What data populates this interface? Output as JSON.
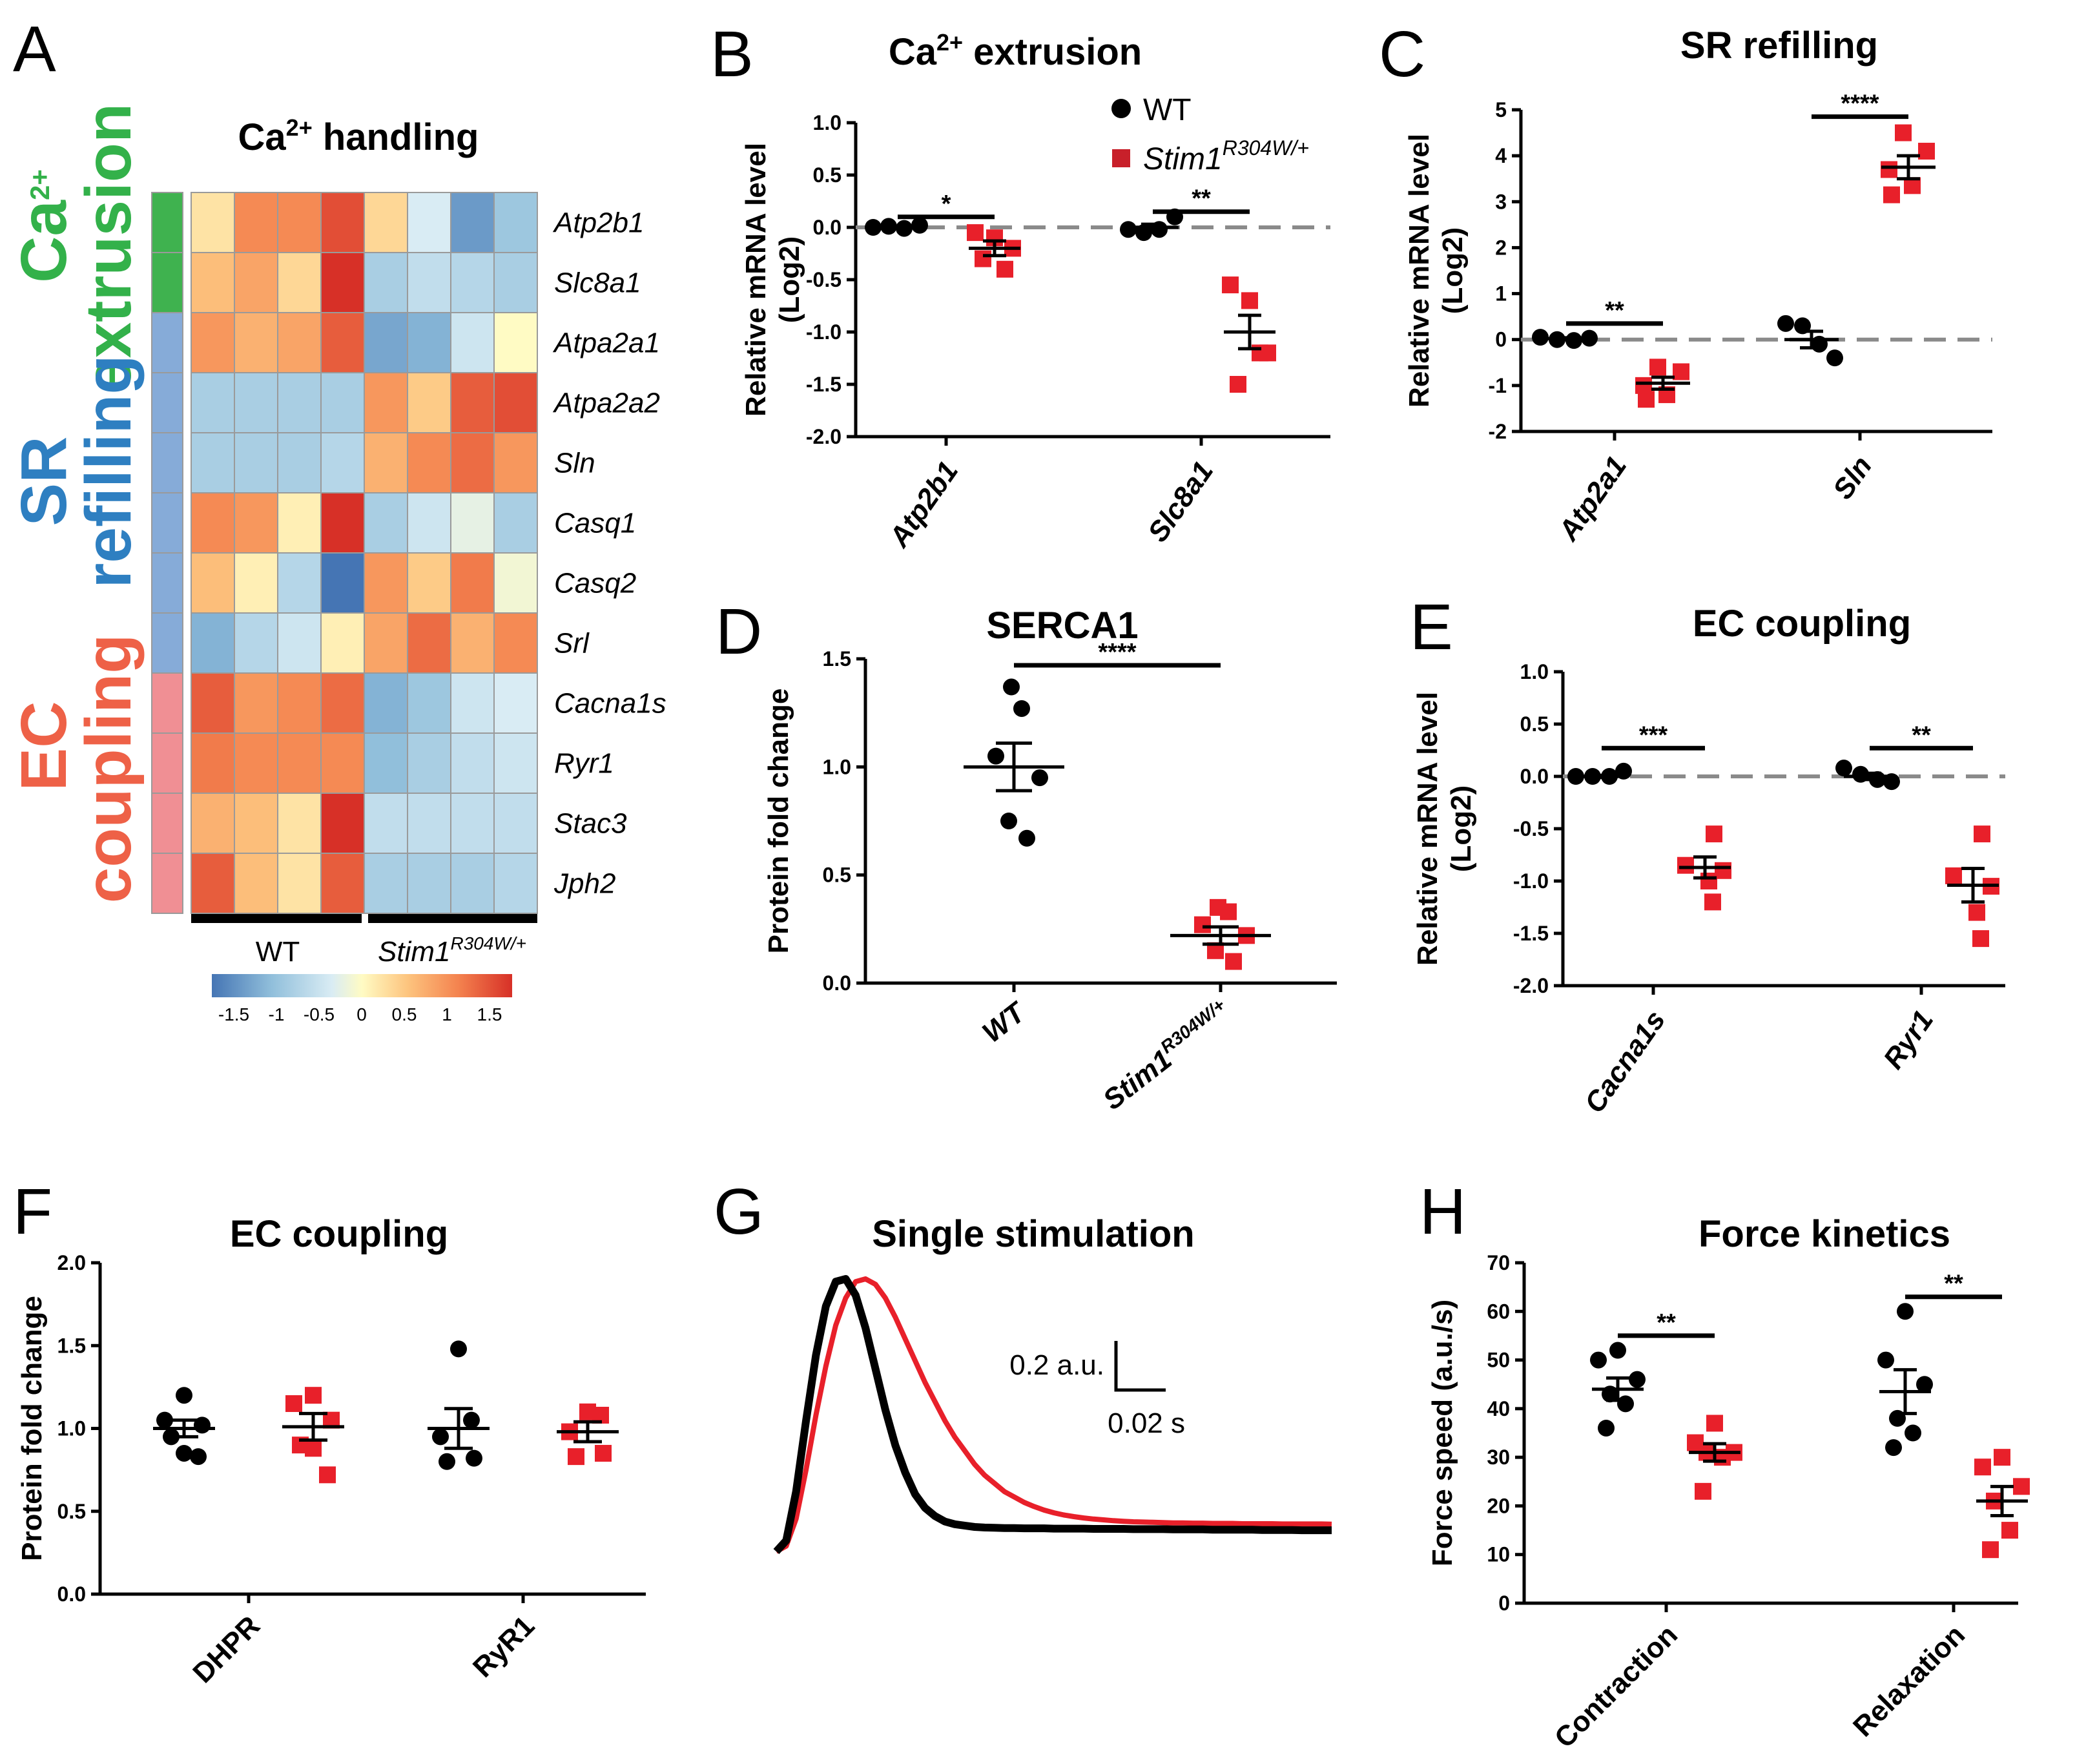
{
  "palette": {
    "wt": "#000000",
    "mut": "#e8202a",
    "dash": "#8a8a8a",
    "green": "#33b14a",
    "blue": "#2e7fc1",
    "salmon": "#ee6147"
  },
  "legend": {
    "wt_label": "WT",
    "mut_base": "Stim1",
    "mut_sup": "R304W/+"
  },
  "panels": {
    "A": {
      "letter": "A",
      "title_pre": "Ca",
      "title_sup": "2+",
      "title_post": " handling",
      "group_extrusion_top_base": "Ca",
      "group_extrusion_top_sup": "2+",
      "group_extrusion_bottom": "extrusion",
      "group_sr_top": "SR",
      "group_sr_bottom": "refilling",
      "group_ec_top": "EC",
      "group_ec_bottom": "coupling",
      "xgroup_wt": "WT",
      "xgroup_mut_base": "Stim1",
      "xgroup_mut_sup": "R304W/+",
      "colorbar_ticks": [
        "-1.5",
        "-1",
        "-0.5",
        "0",
        "0.5",
        "1",
        "1.5"
      ]
    },
    "B": {
      "letter": "B",
      "title_pre": "Ca",
      "title_sup": "2+",
      "title_post": " extrusion"
    },
    "C": {
      "letter": "C",
      "title": "SR refilling"
    },
    "D": {
      "letter": "D",
      "title": "SERCA1"
    },
    "E": {
      "letter": "E",
      "title": "EC coupling"
    },
    "F": {
      "letter": "F",
      "title": "EC coupling"
    },
    "G": {
      "letter": "G",
      "title": "Single stimulation",
      "scale_y": "0.2 a.u.",
      "scale_x": "0.02 s"
    },
    "H": {
      "letter": "H",
      "title": "Force kinetics"
    }
  },
  "chart_data": [
    {
      "panel": "A",
      "type": "heatmap",
      "title": "Ca2+ handling",
      "rows": [
        "Atp2b1",
        "Slc8a1",
        "Atpa2a1",
        "Atpa2a2",
        "Sln",
        "Casq1",
        "Casq2",
        "Srl",
        "Cacna1s",
        "Ryr1",
        "Stac3",
        "Jph2"
      ],
      "row_groups": [
        "extrusion",
        "extrusion",
        "sr",
        "sr",
        "sr",
        "sr",
        "sr",
        "sr",
        "ec",
        "ec",
        "ec",
        "ec"
      ],
      "column_groups": [
        "WT",
        "WT",
        "WT",
        "WT",
        "Stim1 R304W/+",
        "Stim1 R304W/+",
        "Stim1 R304W/+",
        "Stim1 R304W/+"
      ],
      "values": [
        [
          0.2,
          0.9,
          0.9,
          1.3,
          0.3,
          -0.3,
          -1.2,
          -0.8
        ],
        [
          0.5,
          0.7,
          0.3,
          1.6,
          -0.7,
          -0.5,
          -0.6,
          -0.7
        ],
        [
          0.8,
          0.6,
          0.7,
          1.2,
          -1.1,
          -1.0,
          -0.4,
          0.0
        ],
        [
          -0.7,
          -0.7,
          -0.7,
          -0.7,
          0.8,
          0.4,
          1.2,
          1.3
        ],
        [
          -0.7,
          -0.7,
          -0.7,
          -0.6,
          0.6,
          0.9,
          1.1,
          0.8
        ],
        [
          0.9,
          0.8,
          0.1,
          1.6,
          -0.7,
          -0.4,
          -0.2,
          -0.7
        ],
        [
          0.5,
          0.1,
          -0.6,
          -1.6,
          0.8,
          0.4,
          1.0,
          -0.1
        ],
        [
          -1.0,
          -0.6,
          -0.4,
          0.1,
          0.7,
          1.1,
          0.6,
          0.9
        ],
        [
          1.2,
          0.8,
          0.9,
          1.1,
          -1.0,
          -0.8,
          -0.4,
          -0.3
        ],
        [
          1.0,
          0.9,
          0.9,
          0.9,
          -0.9,
          -0.7,
          -0.5,
          -0.4
        ],
        [
          0.6,
          0.5,
          0.2,
          1.6,
          -0.5,
          -0.5,
          -0.5,
          -0.5
        ],
        [
          1.2,
          0.5,
          0.2,
          1.2,
          -0.7,
          -0.7,
          -0.7,
          -0.6
        ]
      ],
      "color_range": [
        -1.5,
        1.5
      ]
    },
    {
      "panel": "B",
      "type": "scatter",
      "title": "Ca2+ extrusion",
      "ylabel": [
        "Relative mRNA level",
        "(Log2)"
      ],
      "ylim": [
        -2.0,
        1.0
      ],
      "yticks": [
        "-2.0",
        "-1.5",
        "-1.0",
        "-0.5",
        "0.0",
        "0.5",
        "1.0"
      ],
      "categories": [
        "Atp2b1",
        "Slc8a1"
      ],
      "baseline": 0,
      "groups": [
        {
          "category": "Atp2b1",
          "series": "WT",
          "values": [
            0.0,
            0.01,
            -0.01,
            0.02
          ],
          "mean": 0.0,
          "sem": 0.01
        },
        {
          "category": "Atp2b1",
          "series": "Stim1",
          "values": [
            -0.05,
            -0.1,
            -0.2,
            -0.3,
            -0.4
          ],
          "mean": -0.2,
          "sem": 0.07
        },
        {
          "category": "Slc8a1",
          "series": "WT",
          "values": [
            -0.02,
            -0.05,
            -0.02,
            0.1
          ],
          "mean": 0.0,
          "sem": 0.03
        },
        {
          "category": "Slc8a1",
          "series": "Stim1",
          "values": [
            -0.55,
            -0.7,
            -1.2,
            -1.5,
            -1.2
          ],
          "mean": -1.0,
          "sem": 0.16
        }
      ],
      "significance": [
        {
          "category": "Atp2b1",
          "label": "*",
          "y": 0.1
        },
        {
          "category": "Slc8a1",
          "label": "**",
          "y": 0.15
        }
      ]
    },
    {
      "panel": "C",
      "type": "scatter",
      "title": "SR refilling",
      "ylabel": [
        "Relative mRNA level",
        "(Log2)"
      ],
      "ylim": [
        -2,
        5
      ],
      "yticks": [
        "-2",
        "-1",
        "0",
        "1",
        "2",
        "3",
        "4",
        "5"
      ],
      "categories": [
        "Atp2a1",
        "Sln"
      ],
      "baseline": 0,
      "groups": [
        {
          "category": "Atp2a1",
          "series": "WT",
          "values": [
            0.05,
            0.0,
            -0.02,
            0.03
          ],
          "mean": 0.02,
          "sem": 0.02
        },
        {
          "category": "Atp2a1",
          "series": "Stim1",
          "values": [
            -0.6,
            -0.7,
            -1.0,
            -1.2,
            -1.3
          ],
          "mean": -0.95,
          "sem": 0.13
        },
        {
          "category": "Sln",
          "series": "WT",
          "values": [
            0.35,
            0.3,
            -0.1,
            -0.4
          ],
          "mean": 0.0,
          "sem": 0.18
        },
        {
          "category": "Sln",
          "series": "Stim1",
          "values": [
            4.5,
            4.1,
            3.7,
            3.35,
            3.15
          ],
          "mean": 3.75,
          "sem": 0.25
        }
      ],
      "significance": [
        {
          "category": "Atp2a1",
          "label": "**",
          "y": 0.35
        },
        {
          "category": "Sln",
          "label": "****",
          "y": 4.85
        }
      ]
    },
    {
      "panel": "D",
      "type": "scatter",
      "title": "SERCA1",
      "ylabel": [
        "Protein fold change"
      ],
      "ylim": [
        0.0,
        1.5
      ],
      "yticks": [
        "0.0",
        "0.5",
        "1.0",
        "1.5"
      ],
      "categories": [
        "WT",
        "Stim1 R304W/+"
      ],
      "groups": [
        {
          "category": "WT",
          "series": "WT",
          "values": [
            1.37,
            1.27,
            1.05,
            0.95,
            0.75,
            0.67
          ],
          "mean": 1.0,
          "sem": 0.11
        },
        {
          "category": "Stim1 R304W/+",
          "series": "Stim1",
          "values": [
            0.35,
            0.33,
            0.27,
            0.22,
            0.15,
            0.1
          ],
          "mean": 0.22,
          "sem": 0.04
        }
      ],
      "significance": [
        {
          "span": [
            "WT",
            "Stim1 R304W/+"
          ],
          "label": "****",
          "y": 1.47
        }
      ]
    },
    {
      "panel": "E",
      "type": "scatter",
      "title": "EC coupling",
      "ylabel": [
        "Relative mRNA level",
        "(Log2)"
      ],
      "ylim": [
        -2.0,
        1.0
      ],
      "yticks": [
        "-2.0",
        "-1.5",
        "-1.0",
        "-0.5",
        "0.0",
        "0.5",
        "1.0"
      ],
      "categories": [
        "Cacna1s",
        "Ryr1"
      ],
      "baseline": 0,
      "groups": [
        {
          "category": "Cacna1s",
          "series": "WT",
          "values": [
            0.0,
            0.0,
            0.0,
            0.05
          ],
          "mean": 0.0,
          "sem": 0.01
        },
        {
          "category": "Cacna1s",
          "series": "Stim1",
          "values": [
            -0.55,
            -0.85,
            -0.9,
            -1.0,
            -1.2
          ],
          "mean": -0.87,
          "sem": 0.1
        },
        {
          "category": "Ryr1",
          "series": "WT",
          "values": [
            0.08,
            0.02,
            -0.03,
            -0.05
          ],
          "mean": 0.0,
          "sem": 0.03
        },
        {
          "category": "Ryr1",
          "series": "Stim1",
          "values": [
            -0.55,
            -0.95,
            -1.05,
            -1.3,
            -1.55
          ],
          "mean": -1.04,
          "sem": 0.16
        }
      ],
      "significance": [
        {
          "category": "Cacna1s",
          "label": "***",
          "y": 0.27
        },
        {
          "category": "Ryr1",
          "label": "**",
          "y": 0.27
        }
      ]
    },
    {
      "panel": "F",
      "type": "scatter",
      "title": "EC coupling",
      "ylabel": [
        "Protein fold change"
      ],
      "ylim": [
        0.0,
        2.0
      ],
      "yticks": [
        "0.0",
        "0.5",
        "1.0",
        "1.5",
        "2.0"
      ],
      "categories": [
        "DHPR",
        "RyR1"
      ],
      "groups": [
        {
          "category": "DHPR",
          "series": "WT",
          "values": [
            1.2,
            1.05,
            1.02,
            0.95,
            0.85,
            0.83
          ],
          "mean": 1.0,
          "sem": 0.05
        },
        {
          "category": "DHPR",
          "series": "Stim1",
          "values": [
            1.2,
            1.15,
            1.05,
            0.9,
            0.88,
            0.72
          ],
          "mean": 1.01,
          "sem": 0.08
        },
        {
          "category": "RyR1",
          "series": "WT",
          "values": [
            1.48,
            1.05,
            0.95,
            0.82,
            0.8
          ],
          "mean": 1.0,
          "sem": 0.12
        },
        {
          "category": "RyR1",
          "series": "Stim1",
          "values": [
            1.1,
            1.08,
            0.98,
            0.85,
            0.83
          ],
          "mean": 0.98,
          "sem": 0.06
        }
      ],
      "significance": []
    },
    {
      "panel": "G",
      "type": "line",
      "title": "Single stimulation",
      "x": [
        0,
        0.005,
        0.01,
        0.015,
        0.02,
        0.025,
        0.03,
        0.035,
        0.04,
        0.045,
        0.05,
        0.055,
        0.06,
        0.065,
        0.07,
        0.075,
        0.08,
        0.085,
        0.09,
        0.095,
        0.1,
        0.105,
        0.11,
        0.115,
        0.12,
        0.125,
        0.13,
        0.135,
        0.14,
        0.145,
        0.15,
        0.155,
        0.16,
        0.165,
        0.17,
        0.175,
        0.18,
        0.185,
        0.19,
        0.195,
        0.2,
        0.205,
        0.21,
        0.215,
        0.22,
        0.225,
        0.23,
        0.235,
        0.24,
        0.245,
        0.25,
        0.255,
        0.26,
        0.265,
        0.27,
        0.275,
        0.28
      ],
      "series": [
        {
          "name": "WT",
          "values": [
            0.0,
            0.04,
            0.22,
            0.48,
            0.72,
            0.9,
            0.99,
            1.0,
            0.94,
            0.82,
            0.67,
            0.52,
            0.39,
            0.29,
            0.21,
            0.16,
            0.13,
            0.11,
            0.1,
            0.095,
            0.09,
            0.088,
            0.087,
            0.086,
            0.086,
            0.085,
            0.085,
            0.085,
            0.084,
            0.084,
            0.084,
            0.084,
            0.083,
            0.083,
            0.083,
            0.083,
            0.082,
            0.082,
            0.082,
            0.082,
            0.081,
            0.081,
            0.081,
            0.081,
            0.08,
            0.08,
            0.08,
            0.08,
            0.08,
            0.079,
            0.079,
            0.079,
            0.079,
            0.078,
            0.078,
            0.078,
            0.078
          ]
        },
        {
          "name": "Stim1",
          "values": [
            0.0,
            0.02,
            0.12,
            0.3,
            0.5,
            0.68,
            0.83,
            0.93,
            0.99,
            1.0,
            0.98,
            0.93,
            0.86,
            0.78,
            0.7,
            0.62,
            0.55,
            0.48,
            0.42,
            0.37,
            0.32,
            0.28,
            0.25,
            0.22,
            0.2,
            0.18,
            0.165,
            0.152,
            0.142,
            0.134,
            0.128,
            0.123,
            0.119,
            0.116,
            0.113,
            0.111,
            0.109,
            0.108,
            0.107,
            0.106,
            0.105,
            0.105,
            0.104,
            0.104,
            0.103,
            0.103,
            0.103,
            0.102,
            0.102,
            0.102,
            0.102,
            0.101,
            0.101,
            0.101,
            0.101,
            0.101,
            0.1
          ]
        }
      ],
      "scale_bar": {
        "y_value": 0.2,
        "y_unit": "a.u.",
        "x_value": 0.02,
        "x_unit": "s"
      }
    },
    {
      "panel": "H",
      "type": "scatter",
      "title": "Force kinetics",
      "ylabel": [
        "Force speed (a.u./s)"
      ],
      "ylim": [
        0,
        70
      ],
      "yticks": [
        "0",
        "10",
        "20",
        "30",
        "40",
        "50",
        "60",
        "70"
      ],
      "categories": [
        "Contraction",
        "Relaxation"
      ],
      "groups": [
        {
          "category": "Contraction",
          "series": "WT",
          "values": [
            52,
            50,
            46,
            43,
            41,
            36
          ],
          "mean": 44,
          "sem": 2.3
        },
        {
          "category": "Contraction",
          "series": "Stim1",
          "values": [
            37,
            33,
            31,
            31,
            30,
            23
          ],
          "mean": 31,
          "sem": 1.8
        },
        {
          "category": "Relaxation",
          "series": "WT",
          "values": [
            60,
            50,
            45,
            38,
            35,
            32
          ],
          "mean": 43.5,
          "sem": 4.5
        },
        {
          "category": "Relaxation",
          "series": "Stim1",
          "values": [
            30,
            28,
            24,
            21,
            15,
            11
          ],
          "mean": 21,
          "sem": 3
        }
      ],
      "significance": [
        {
          "category": "Contraction",
          "label": "**",
          "y": 55
        },
        {
          "category": "Relaxation",
          "label": "**",
          "y": 63
        }
      ]
    }
  ]
}
